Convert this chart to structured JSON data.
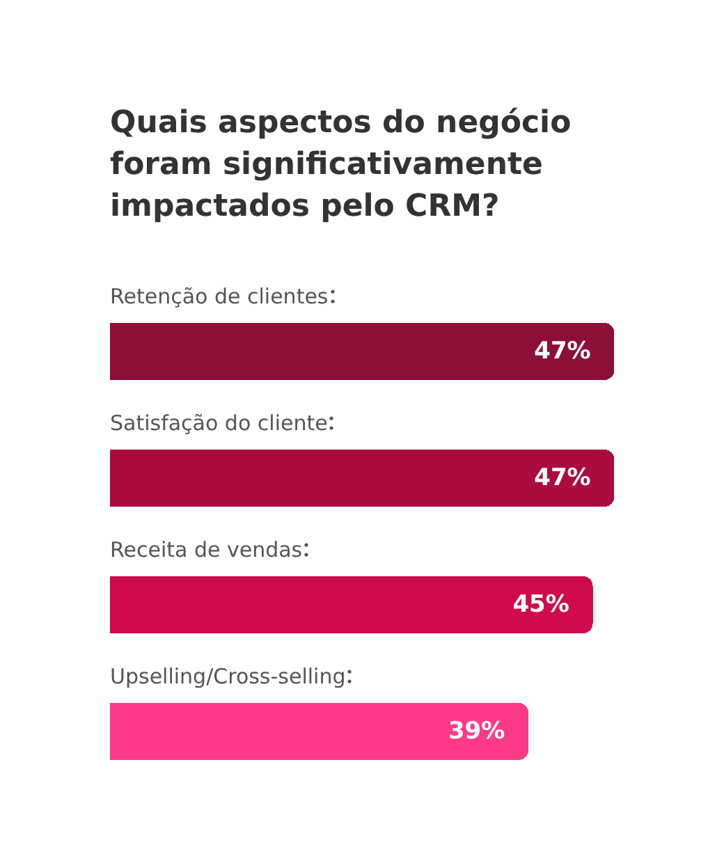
{
  "chart_data": {
    "type": "bar",
    "orientation": "horizontal",
    "title": "Quais aspectos do negócio foram significativamente impactados pelo CRM?",
    "categories": [
      "Retenção de clientes",
      "Satisfação do cliente",
      "Receita de vendas",
      "Upselling/Cross-selling"
    ],
    "values": [
      47,
      47,
      45,
      39
    ],
    "value_labels": [
      "47%",
      "47%",
      "45%",
      "39%"
    ],
    "colors": [
      "#8c0f37",
      "#ab0c3f",
      "#cf0a4d",
      "#fc3a86"
    ]
  }
}
